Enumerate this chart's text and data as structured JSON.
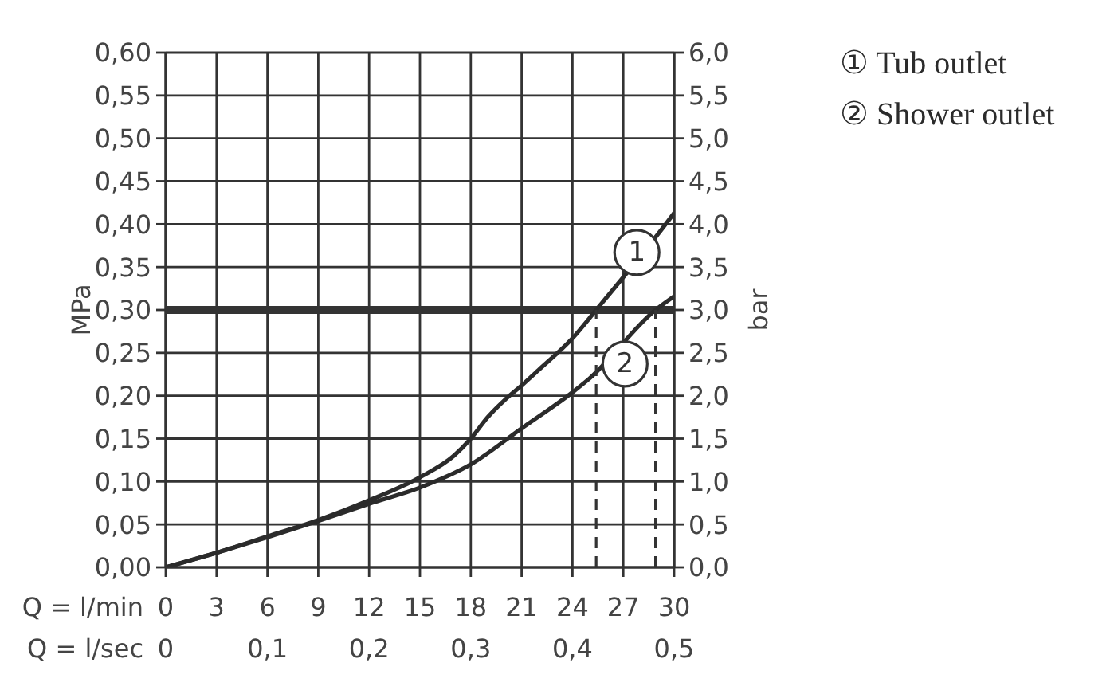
{
  "chart_data": {
    "type": "line",
    "xlabel": "Q = l/min",
    "x2label": "Q = l/sec",
    "ylabel": "MPa",
    "y2label": "bar",
    "xlim": [
      0,
      30
    ],
    "xticks": [
      0,
      3,
      6,
      9,
      12,
      15,
      18,
      21,
      24,
      27,
      30
    ],
    "x2lim": [
      0,
      0.5
    ],
    "x2ticks": [
      0,
      {
        "value": 0.1,
        "label": "0,1"
      },
      {
        "value": 0.2,
        "label": "0,2"
      },
      {
        "value": 0.3,
        "label": "0,3"
      },
      {
        "value": 0.4,
        "label": "0,4"
      },
      {
        "value": 0.5,
        "label": "0,5"
      }
    ],
    "ylim": [
      0,
      0.6
    ],
    "yticks": [
      {
        "value": 0,
        "label": "0,00"
      },
      {
        "value": 0.05,
        "label": "0,05"
      },
      {
        "value": 0.1,
        "label": "0,10"
      },
      {
        "value": 0.15,
        "label": "0,15"
      },
      {
        "value": 0.2,
        "label": "0,20"
      },
      {
        "value": 0.25,
        "label": "0,25"
      },
      {
        "value": 0.3,
        "label": "0,30"
      },
      {
        "value": 0.35,
        "label": "0,35"
      },
      {
        "value": 0.4,
        "label": "0,40"
      },
      {
        "value": 0.45,
        "label": "0,45"
      },
      {
        "value": 0.5,
        "label": "0,50"
      },
      {
        "value": 0.55,
        "label": "0,55"
      },
      {
        "value": 0.6,
        "label": "0,60"
      }
    ],
    "y2lim": [
      0,
      6
    ],
    "y2ticks": [
      {
        "value": 0,
        "label": "0,0"
      },
      {
        "value": 0.5,
        "label": "0,5"
      },
      {
        "value": 1,
        "label": "1,0"
      },
      {
        "value": 1.5,
        "label": "1,5"
      },
      {
        "value": 2,
        "label": "2,0"
      },
      {
        "value": 2.5,
        "label": "2,5"
      },
      {
        "value": 3,
        "label": "3,0"
      },
      {
        "value": 3.5,
        "label": "3,5"
      },
      {
        "value": 4,
        "label": "4,0"
      },
      {
        "value": 4.5,
        "label": "4,5"
      },
      {
        "value": 5,
        "label": "5,0"
      },
      {
        "value": 5.5,
        "label": "5,5"
      },
      {
        "value": 6,
        "label": "6,0"
      }
    ],
    "grid": true,
    "legend": "top right",
    "series": [
      {
        "name": "① Tub outlet",
        "color": "#2b2b2b",
        "x": [
          0,
          3,
          6,
          9,
          12,
          15,
          17,
          18,
          19,
          20,
          21,
          22,
          24,
          25.4,
          29.5,
          30
        ],
        "values": [
          0,
          0.017,
          0.036,
          0.055,
          0.078,
          0.105,
          0.13,
          0.15,
          0.175,
          0.195,
          0.212,
          0.23,
          0.267,
          0.3,
          0.4,
          0.413
        ]
      },
      {
        "name": "② Shower outlet",
        "color": "#2b2b2b",
        "x": [
          0,
          3,
          6,
          9,
          12,
          15,
          18,
          21,
          24,
          25,
          28.9,
          30
        ],
        "values": [
          0,
          0.017,
          0.035,
          0.054,
          0.074,
          0.093,
          0.12,
          0.162,
          0.204,
          0.22,
          0.3,
          0.316
        ]
      },
      {
        "color": "#333333",
        "x": [
          25.4,
          25.4
        ],
        "values": [
          0,
          0.3
        ],
        "line_style": "dashed"
      },
      {
        "color": "#333333",
        "x": [
          28.9,
          28.9
        ],
        "values": [
          0,
          0.3
        ],
        "line_style": "dashed"
      }
    ],
    "ref_lines": [
      {
        "axis": "y",
        "value": 0.3,
        "color": "#333333"
      }
    ],
    "annotations": [
      {
        "text": "1",
        "x": 27.8,
        "y": 0.367
      },
      {
        "text": "2",
        "x": 27.1,
        "y": 0.237
      }
    ]
  }
}
